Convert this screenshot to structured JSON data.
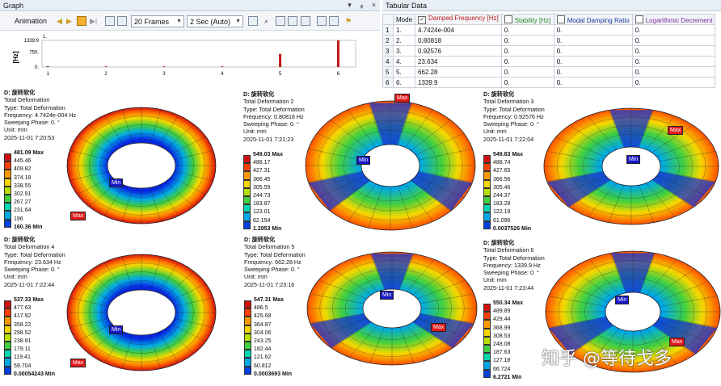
{
  "graph": {
    "title": "Graph",
    "toolbar": {
      "animation_label": "Animation",
      "frames_value": "20 Frames",
      "duration_value": "2 Sec (Auto)"
    },
    "chart_data": {
      "type": "bar",
      "ylabel": "[Hz]",
      "top_label": "1.",
      "y_ticks": [
        "1339.9",
        "750.",
        "0."
      ],
      "x_ticks": [
        "1",
        "2",
        "3",
        "4",
        "5",
        "6"
      ],
      "x": [
        1,
        2,
        3,
        4,
        5,
        6
      ],
      "values": [
        0.00047424,
        0.80818,
        0.92576,
        23.634,
        662.28,
        1339.9
      ],
      "ylim": [
        0,
        1339.9
      ],
      "colors": {
        "selected": "#000000",
        "bar": "#c01818"
      }
    }
  },
  "tabular": {
    "title": "Tabular Data",
    "columns": [
      "Mode",
      "Damped Frequency [Hz]",
      "Stability [Hz]",
      "Modal Damping Ratio",
      "Logarithmic Decrement"
    ],
    "column_colors": [
      "#111111",
      "#c01818",
      "#2a8a2a",
      "#1a3a9a",
      "#7a2a9a"
    ],
    "rows": [
      [
        "1",
        "1.",
        "4.7424e-004",
        "0.",
        "0.",
        "0."
      ],
      [
        "2",
        "2.",
        "0.80818",
        "0.",
        "0.",
        "0."
      ],
      [
        "3",
        "3.",
        "0.92576",
        "0.",
        "0.",
        "0."
      ],
      [
        "4",
        "4.",
        "23.634",
        "0.",
        "0.",
        "0."
      ],
      [
        "5",
        "5.",
        "662.28",
        "0.",
        "0.",
        "0."
      ],
      [
        "6",
        "6.",
        "1339.9",
        "0.",
        "0.",
        "0."
      ]
    ]
  },
  "results": [
    {
      "title": "D: 旋转软化",
      "lines": [
        "Total Deformation",
        "Type: Total Deformation",
        "Frequency: 4.7424e-004 Hz",
        "Sweeping Phase: 0. °",
        "Unit: mm",
        "2025-11-01 7:20:53"
      ],
      "legend": [
        "481.09 Max",
        "445.46",
        "409.82",
        "374.18",
        "338.55",
        "302.91",
        "267.27",
        "231.64",
        "196",
        "160.36 Min"
      ],
      "shape": "ring",
      "tags": {
        "max": "Max",
        "min": "Min"
      }
    },
    {
      "title": "D: 旋转软化",
      "lines": [
        "Total Deformation 2",
        "Type: Total Deformation",
        "Frequency: 0.80818 Hz",
        "Sweeping Phase: 0. °",
        "Unit: mm",
        "2025-11-01 7:21:23"
      ],
      "legend": [
        "549.03 Max",
        "488.17",
        "427.31",
        "366.45",
        "305.59",
        "244.73",
        "183.87",
        "123.01",
        "62.154",
        "1.2953 Min"
      ],
      "shape": "tri",
      "tags": {
        "max": "Max",
        "min": "Min"
      }
    },
    {
      "title": "D: 旋转软化",
      "lines": [
        "Total Deformation 3",
        "Type: Total Deformation",
        "Frequency: 0.92576 Hz",
        "Sweeping Phase: 0. °",
        "Unit: mm",
        "2025-11-01 7:22:04"
      ],
      "legend": [
        "549.83 Max",
        "488.74",
        "427.65",
        "366.56",
        "305.46",
        "244.37",
        "183.28",
        "122.19",
        "61.096",
        "0.0037526 Min"
      ],
      "shape": "tri2",
      "tags": {
        "max": "Max",
        "min": "Min"
      }
    },
    {
      "title": "D: 旋转软化",
      "lines": [
        "Total Deformation 4",
        "Type: Total Deformation",
        "Frequency: 23.634 Hz",
        "Sweeping Phase: 0. °",
        "Unit: mm",
        "2025-11-01 7:22:44"
      ],
      "legend": [
        "537.33 Max",
        "477.63",
        "417.92",
        "358.22",
        "298.52",
        "238.81",
        "179.11",
        "119.41",
        "59.704",
        "0.00054243 Min"
      ],
      "shape": "ring",
      "tags": {
        "max": "Max",
        "min": "Min"
      }
    },
    {
      "title": "D: 旋转软化",
      "lines": [
        "Total Deformation 5",
        "Type: Total Deformation",
        "Frequency: 662.28 Hz",
        "Sweeping Phase: 0. °",
        "Unit: mm",
        "2025-11-01 7:23:16"
      ],
      "legend": [
        "547.31 Max",
        "486.5",
        "425.68",
        "364.87",
        "304.06",
        "243.25",
        "182.44",
        "121.62",
        "60.812",
        "0.0003693 Min"
      ],
      "shape": "oval",
      "tags": {
        "max": "Max",
        "min": "Min"
      }
    },
    {
      "title": "D: 旋转软化",
      "lines": [
        "Total Deformation 6",
        "Type: Total Deformation",
        "Frequency: 1339.9 Hz",
        "Sweeping Phase: 0. °",
        "Unit: mm",
        "2025-11-01 7:23:44"
      ],
      "legend": [
        "550.34 Max",
        "489.89",
        "429.44",
        "368.99",
        "308.53",
        "248.08",
        "187.63",
        "127.18",
        "66.724",
        "6.2721 Min"
      ],
      "shape": "tri3",
      "tags": {
        "max": "Max",
        "min": "Min"
      }
    }
  ],
  "watermark": "知乎 @等待戈多"
}
